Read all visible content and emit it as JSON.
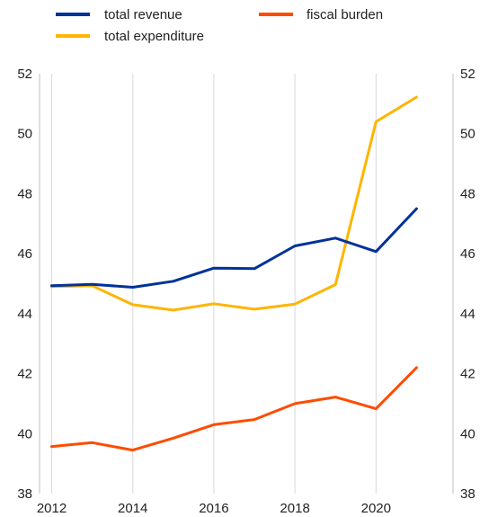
{
  "chart_data": {
    "type": "line",
    "x": [
      2012,
      2013,
      2014,
      2015,
      2016,
      2017,
      2018,
      2019,
      2020,
      2021
    ],
    "x_ticks": [
      "2012",
      "2014",
      "2016",
      "2018",
      "2020"
    ],
    "y_ticks": [
      "38",
      "40",
      "42",
      "44",
      "46",
      "48",
      "50",
      "52"
    ],
    "ylim": [
      38,
      52
    ],
    "grid": "vertical",
    "legend_position": "top",
    "series": [
      {
        "name": "total revenue",
        "color": "#003299",
        "values": [
          44.93,
          44.98,
          44.88,
          45.08,
          45.52,
          45.5,
          46.26,
          46.52,
          46.07,
          47.5
        ]
      },
      {
        "name": "fiscal burden",
        "color": "#FF4B00",
        "values": [
          39.57,
          39.7,
          39.45,
          39.85,
          40.3,
          40.47,
          41.0,
          41.22,
          40.83,
          42.2
        ]
      },
      {
        "name": "total expenditure",
        "color": "#FFB400",
        "values": [
          44.9,
          44.93,
          44.3,
          44.12,
          44.33,
          44.15,
          44.32,
          44.97,
          50.4,
          51.22
        ]
      }
    ]
  }
}
